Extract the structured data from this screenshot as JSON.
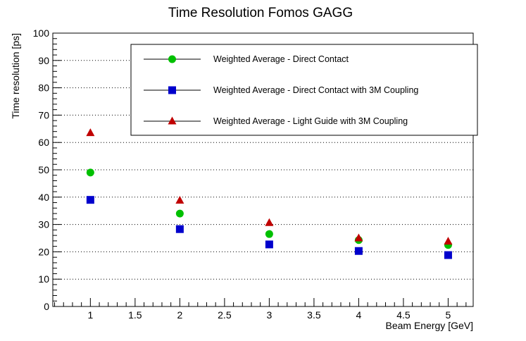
{
  "chart_data": {
    "type": "scatter",
    "title": "Time Resolution Fomos GAGG",
    "xlabel": "Beam Energy [GeV]",
    "ylabel": "Time resolution [ps]",
    "xlim": [
      0.58,
      5.28
    ],
    "ylim": [
      0,
      100
    ],
    "x_ticks": [
      "1",
      "1.5",
      "2",
      "2.5",
      "3",
      "3.5",
      "4",
      "4.5",
      "5"
    ],
    "x_tick_values": [
      1,
      1.5,
      2,
      2.5,
      3,
      3.5,
      4,
      4.5,
      5
    ],
    "y_ticks": [
      "0",
      "10",
      "20",
      "30",
      "40",
      "50",
      "60",
      "70",
      "80",
      "90",
      "100"
    ],
    "y_tick_values": [
      0,
      10,
      20,
      30,
      40,
      50,
      60,
      70,
      80,
      90,
      100
    ],
    "grid": "horizontal dotted",
    "legend_position": "top-right",
    "series": [
      {
        "name": "Weighted Average - Direct Contact",
        "marker": "circle",
        "color": "#00c000",
        "x": [
          1,
          2,
          3,
          4,
          5
        ],
        "y": [
          49,
          34,
          26.5,
          24.3,
          22.5
        ]
      },
      {
        "name": "Weighted Average - Direct Contact with 3M Coupling",
        "marker": "square",
        "color": "#0000cc",
        "x": [
          1,
          2,
          3,
          4,
          5
        ],
        "y": [
          39,
          28.3,
          22.7,
          20.3,
          18.8
        ]
      },
      {
        "name": "Weighted Average - Light Guide with 3M Coupling",
        "marker": "triangle",
        "color": "#c00000",
        "x": [
          1,
          2,
          3,
          4,
          5
        ],
        "y": [
          63.5,
          38.8,
          30.6,
          25,
          23.8
        ]
      }
    ]
  }
}
